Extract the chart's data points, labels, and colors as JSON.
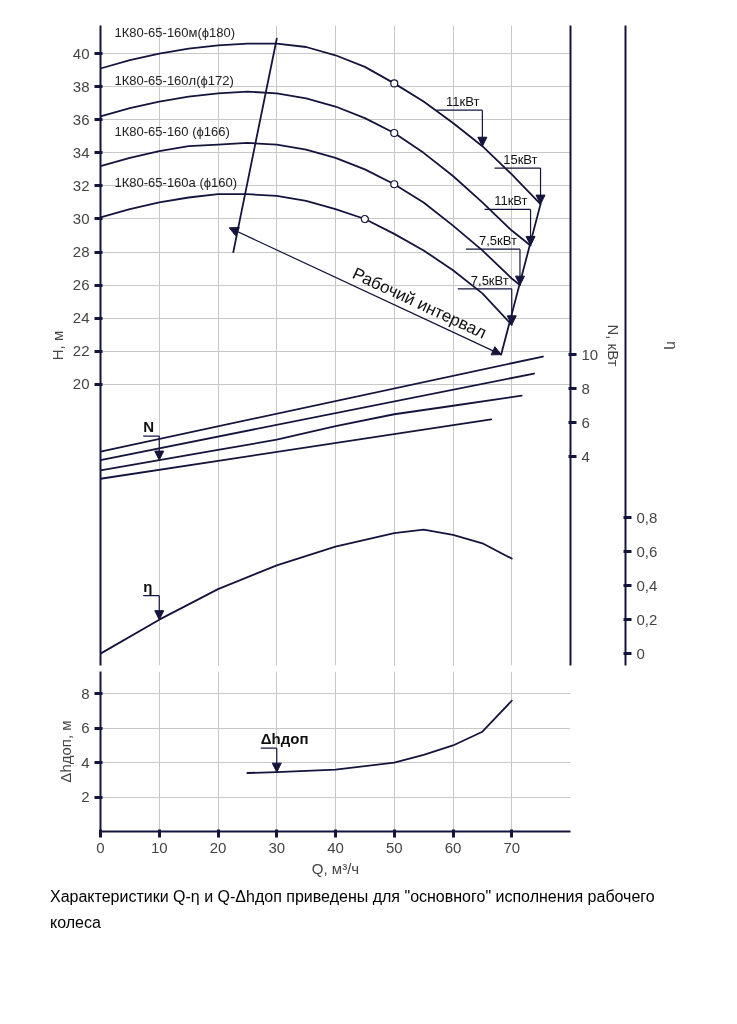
{
  "chart_data": [
    {
      "type": "line",
      "xlim": [
        0,
        80
      ],
      "xticks": [
        0,
        10,
        20,
        30,
        40,
        50,
        60,
        70
      ],
      "tick_labels": "y",
      "ylim": [
        3,
        41.7
      ],
      "yticks": [
        20,
        22,
        24,
        26,
        28,
        30,
        32,
        34,
        36,
        38,
        40
      ],
      "ylabel": "H, м",
      "y2lim": [
        -8.3,
        29.4
      ],
      "y2ticks": [
        4,
        6,
        8,
        10
      ],
      "y2label": "N, кВт",
      "y3lim": [
        -0.07,
        3.7
      ],
      "y3ticks": [
        0,
        {
          "value": 0.2,
          "label": "0,2"
        },
        {
          "value": 0.4,
          "label": "0,4"
        },
        {
          "value": 0.6,
          "label": "0,6"
        },
        {
          "value": 0.8,
          "label": "0,8"
        }
      ],
      "y3label": "η",
      "grid": true,
      "series": [
        {
          "name": "1К80-65-160м(ϕ180)",
          "color": "#14143c",
          "x": [
            0,
            5,
            10,
            15,
            20,
            25,
            30,
            35,
            40,
            45,
            50,
            55,
            60,
            65,
            70,
            74.9
          ],
          "values": [
            39.1,
            39.6,
            40.0,
            40.3,
            40.5,
            40.6,
            40.6,
            40.4,
            39.9,
            39.2,
            38.2,
            37.1,
            35.8,
            34.4,
            32.7,
            30.9
          ]
        },
        {
          "name": "1К80-65-160л(ϕ172)",
          "color": "#14143c",
          "x": [
            0,
            5,
            10,
            15,
            20,
            25,
            30,
            35,
            40,
            45,
            50,
            55,
            60,
            65,
            70,
            73.2
          ],
          "values": [
            36.2,
            36.7,
            37.1,
            37.4,
            37.6,
            37.7,
            37.6,
            37.3,
            36.8,
            36.1,
            35.2,
            34.0,
            32.6,
            31.0,
            29.3,
            28.4
          ]
        },
        {
          "name": "1К80-65-160 (ϕ166)",
          "color": "#14143c",
          "x": [
            0,
            5,
            10,
            15,
            20,
            25,
            30,
            35,
            40,
            45,
            50,
            55,
            60,
            65,
            70,
            71.4
          ],
          "values": [
            33.2,
            33.7,
            34.1,
            34.4,
            34.5,
            34.6,
            34.5,
            34.2,
            33.7,
            33.0,
            32.1,
            31.0,
            29.6,
            28.1,
            26.4,
            26.0
          ]
        },
        {
          "name": "1К80-65-160а (ϕ160)",
          "color": "#14143c",
          "x": [
            0,
            5,
            10,
            15,
            20,
            25,
            30,
            35,
            40,
            45,
            50,
            55,
            60,
            65,
            70
          ],
          "values": [
            30.1,
            30.6,
            31.0,
            31.3,
            31.5,
            31.5,
            31.4,
            31.1,
            30.6,
            30.0,
            29.1,
            28.1,
            26.9,
            25.5,
            23.6
          ]
        },
        {
          "type": "scatter",
          "marker": "circle",
          "color": "#14143c",
          "x": [
            50,
            50,
            50,
            45
          ],
          "values": [
            38.2,
            35.2,
            32.1,
            30.0
          ]
        },
        {
          "color": "#14143c",
          "x": [
            22.6,
            30
          ],
          "values": [
            28,
            40.9
          ]
        },
        {
          "color": "#14143c",
          "x": [
            68.2,
            74.9
          ],
          "values": [
            21.8,
            30.9
          ]
        },
        {
          "axis": "y2",
          "color": "#14143c",
          "x": [
            0,
            75.3
          ],
          "values": [
            4.3,
            9.9
          ]
        },
        {
          "axis": "y2",
          "color": "#14143c",
          "x": [
            0,
            73.8
          ],
          "values": [
            3.8,
            8.9
          ]
        },
        {
          "name": "N",
          "axis": "y2",
          "color": "#14143c",
          "x": [
            0,
            10,
            20,
            30,
            40,
            50,
            60,
            71.7
          ],
          "values": [
            3.2,
            3.8,
            4.4,
            5.0,
            5.8,
            6.5,
            7.0,
            7.6
          ]
        },
        {
          "axis": "y2",
          "color": "#14143c",
          "x": [
            0,
            66.5
          ],
          "values": [
            2.7,
            6.2
          ]
        },
        {
          "name": "η",
          "axis": "y3",
          "color": "#14143c",
          "x": [
            0,
            10,
            20,
            30,
            40,
            50,
            55,
            60,
            65,
            70
          ],
          "values": [
            0.0,
            0.2,
            0.38,
            0.52,
            0.63,
            0.71,
            0.73,
            0.7,
            0.65,
            0.56
          ]
        }
      ],
      "annotations": [
        {
          "text": "11кВт",
          "x": 65,
          "y": 34.4
        },
        {
          "text": "15кВт",
          "x": 74.9,
          "y": 30.9
        },
        {
          "text": "11кВт",
          "x": 73.2,
          "y": 28.4
        },
        {
          "text": "7,5кВт",
          "x": 71.4,
          "y": 26.0
        },
        {
          "text": "7,5кВт",
          "x": 70,
          "y": 23.6
        },
        {
          "text": "Рабочий интервал",
          "x": 68.2,
          "y": 21.8
        }
      ]
    },
    {
      "type": "line",
      "xlim": [
        0,
        80
      ],
      "xticks": [
        0,
        10,
        20,
        30,
        40,
        50,
        60,
        70
      ],
      "xlabel": "Q, м³/ч",
      "ylim": [
        0,
        9.3
      ],
      "yticks": [
        2,
        4,
        6,
        8
      ],
      "ylabel": "Δhдоп, м",
      "grid": true,
      "series": [
        {
          "name": "Δhдоп",
          "color": "#14143c",
          "x": [
            25,
            30,
            40,
            50,
            55,
            60,
            65,
            70
          ],
          "values": [
            3.4,
            3.45,
            3.6,
            4.0,
            4.45,
            5.0,
            5.8,
            7.6
          ]
        }
      ],
      "annotations": [
        "Характеристики Q-η и Q-Δhдоп приведены для \"основного\" исполнения рабочего колеса"
      ]
    }
  ]
}
